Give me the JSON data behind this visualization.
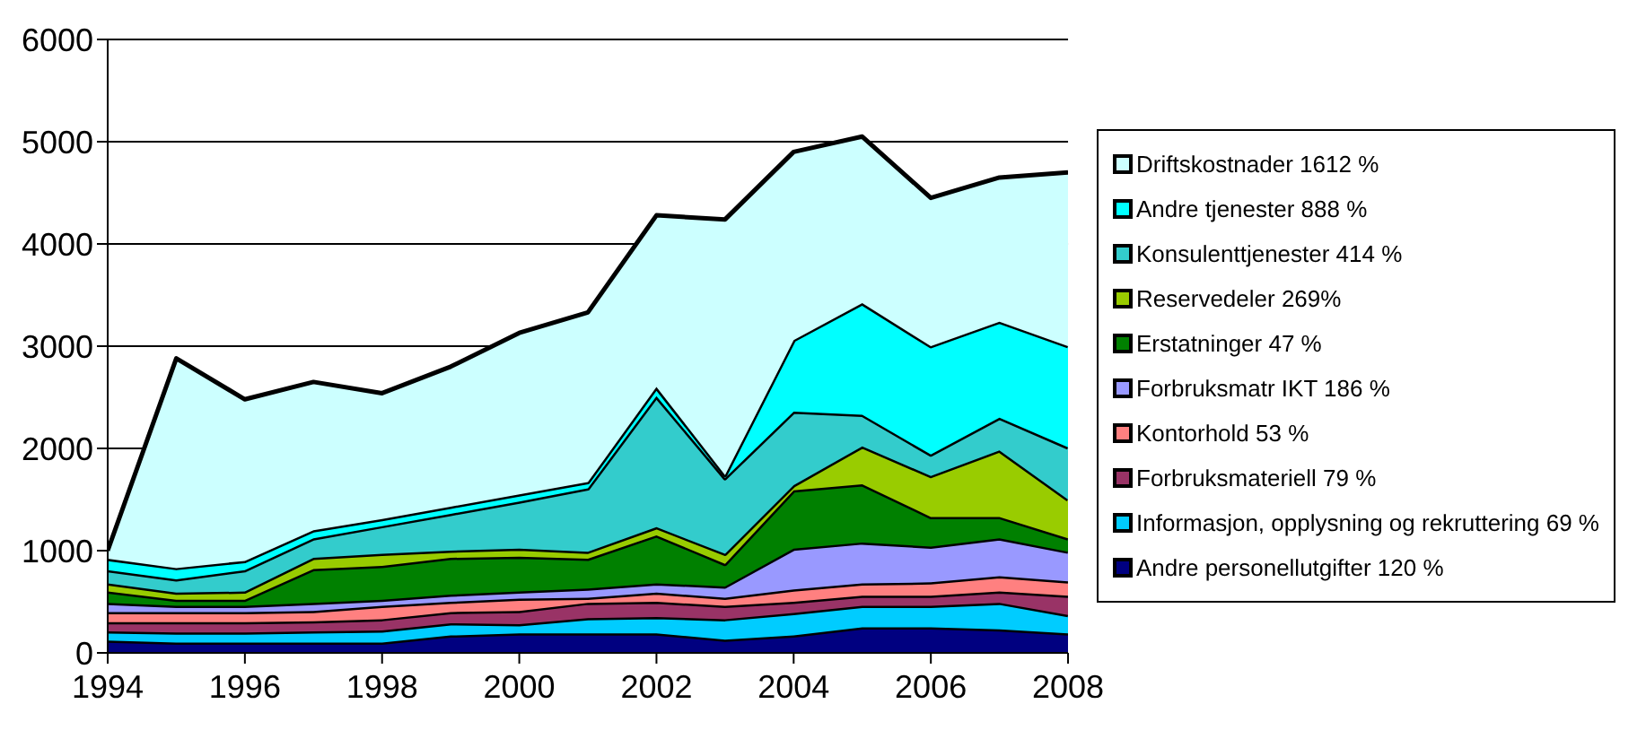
{
  "chart_data": {
    "type": "area",
    "stacked": true,
    "x": [
      1994,
      1995,
      1996,
      1997,
      1998,
      1999,
      2000,
      2001,
      2002,
      2003,
      2004,
      2005,
      2006,
      2007,
      2008
    ],
    "xlim": [
      1994,
      2008
    ],
    "xticks": [
      1994,
      1996,
      1998,
      2000,
      2002,
      2004,
      2006,
      2008
    ],
    "ylim": [
      0,
      6000
    ],
    "yticks": [
      0,
      1000,
      2000,
      3000,
      4000,
      5000,
      6000
    ],
    "grid": "y",
    "legend": "right",
    "series": [
      {
        "name": "Andre personellutgifter 120 %",
        "color": "#000080",
        "values": [
          120,
          100,
          100,
          100,
          100,
          170,
          190,
          190,
          190,
          130,
          170,
          250,
          250,
          230,
          190
        ]
      },
      {
        "name": "Informasjon, opplysning og rekruttering 69 %",
        "color": "#00ccff",
        "values": [
          90,
          100,
          100,
          110,
          120,
          120,
          90,
          150,
          160,
          200,
          220,
          210,
          210,
          260,
          180
        ]
      },
      {
        "name": "Forbruksmateriell 79 %",
        "color": "#993366",
        "values": [
          90,
          100,
          100,
          100,
          110,
          110,
          130,
          150,
          150,
          130,
          110,
          100,
          100,
          110,
          190
        ]
      },
      {
        "name": "Kontorhold 53 %",
        "color": "#ff8080",
        "values": [
          100,
          100,
          100,
          100,
          130,
          100,
          120,
          50,
          90,
          80,
          120,
          120,
          130,
          150,
          140
        ]
      },
      {
        "name": "Forbruksmatr IKT 186 %",
        "color": "#9999ff",
        "values": [
          90,
          60,
          60,
          80,
          60,
          70,
          70,
          90,
          90,
          110,
          400,
          400,
          350,
          370,
          290
        ]
      },
      {
        "name": "Erstatninger 47 %",
        "color": "#008000",
        "values": [
          110,
          60,
          60,
          330,
          330,
          360,
          340,
          290,
          470,
          220,
          570,
          570,
          290,
          210,
          130
        ]
      },
      {
        "name": "Reservedeler 269%",
        "color": "#99cc00",
        "values": [
          80,
          70,
          80,
          110,
          120,
          70,
          80,
          70,
          80,
          100,
          50,
          370,
          400,
          650,
          380
        ]
      },
      {
        "name": "Konsulenttjenester 414 %",
        "color": "#33cccc",
        "values": [
          130,
          130,
          210,
          190,
          270,
          360,
          460,
          620,
          1280,
          740,
          720,
          310,
          210,
          320,
          510
        ]
      },
      {
        "name": "Andre tjenester 888 %",
        "color": "#00ffff",
        "values": [
          110,
          110,
          90,
          80,
          70,
          70,
          70,
          60,
          90,
          30,
          700,
          1090,
          1060,
          940,
          990
        ]
      },
      {
        "name": "Driftskostnader 1612 %",
        "color": "#ccffff",
        "values": [
          80,
          2050,
          1580,
          1450,
          1230,
          1370,
          1580,
          1660,
          1680,
          2500,
          1840,
          1630,
          1450,
          1410,
          1700
        ]
      }
    ]
  }
}
